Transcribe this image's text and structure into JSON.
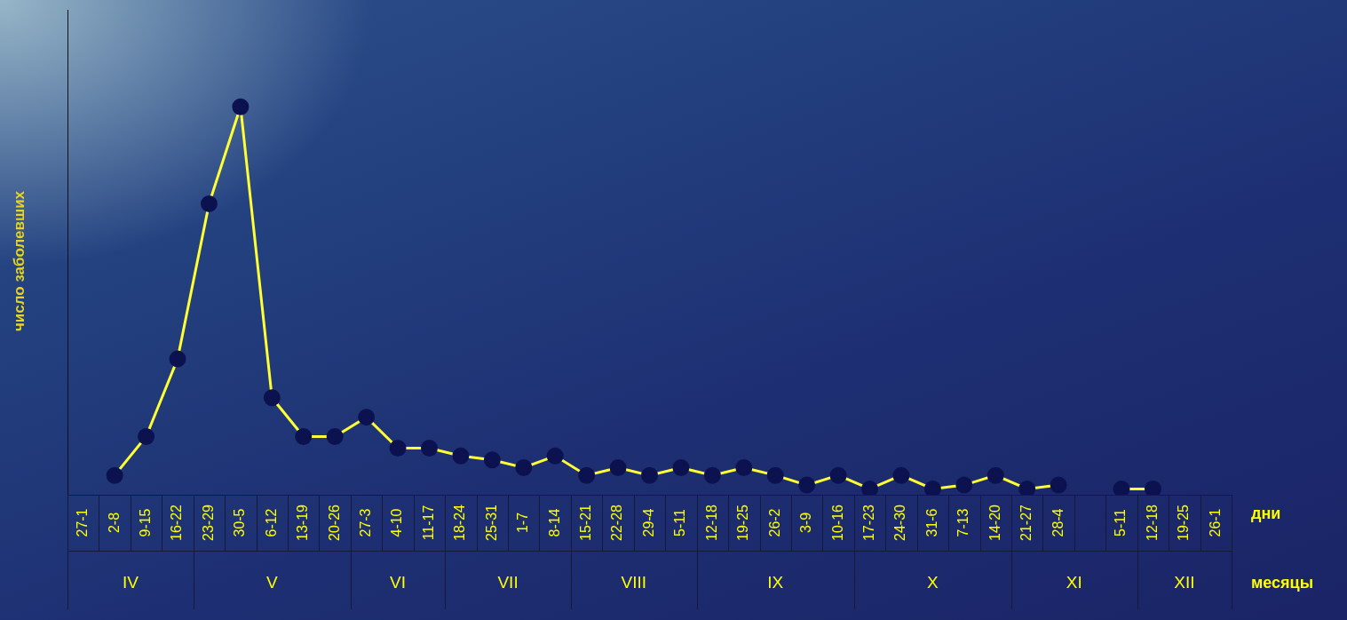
{
  "chart_data": {
    "type": "line",
    "y_label": "число заболевших",
    "x_label": "дни",
    "x_group_label": "месяцы",
    "categories": [
      "27-1",
      "2-8",
      "9-15",
      "16-22",
      "23-29",
      "30-5",
      "6-12",
      "13-19",
      "20-26",
      "27-3",
      "4-10",
      "11-17",
      "18-24",
      "25-31",
      "1-7",
      "8-14",
      "15-21",
      "22-28",
      "29-4",
      "5-11",
      "12-18",
      "19-25",
      "26-2",
      "3-9",
      "10-16",
      "17-23",
      "24-30",
      "31-6",
      "7-13",
      "14-20",
      "21-27",
      "28-4",
      null,
      "5-11",
      "12-18",
      "19-25",
      "26-1"
    ],
    "x_groups": [
      {
        "label": "IV",
        "size": 4
      },
      {
        "label": "V",
        "size": 5
      },
      {
        "label": "VI",
        "size": 3
      },
      {
        "label": "VII",
        "size": 4
      },
      {
        "label": "VIII",
        "size": 4
      },
      {
        "label": "IX",
        "size": 5
      },
      {
        "label": "X",
        "size": 5
      },
      {
        "label": "XI",
        "size": 4
      },
      {
        "label": "XII",
        "size": 3
      }
    ],
    "values": [
      null,
      5,
      15,
      35,
      75,
      100,
      25,
      15,
      15,
      20,
      12,
      12,
      10,
      9,
      7,
      10,
      5,
      7,
      5,
      7,
      5,
      7,
      5,
      2.5,
      5,
      1.5,
      5,
      1.5,
      2.5,
      5,
      1.5,
      2.5,
      null,
      1.5,
      1.5,
      null,
      null
    ],
    "color": "#ffff33",
    "marker": "circle",
    "line_style": "solid",
    "ylim": [
      0,
      125
    ],
    "tick_labels": "x",
    "grid": false
  }
}
